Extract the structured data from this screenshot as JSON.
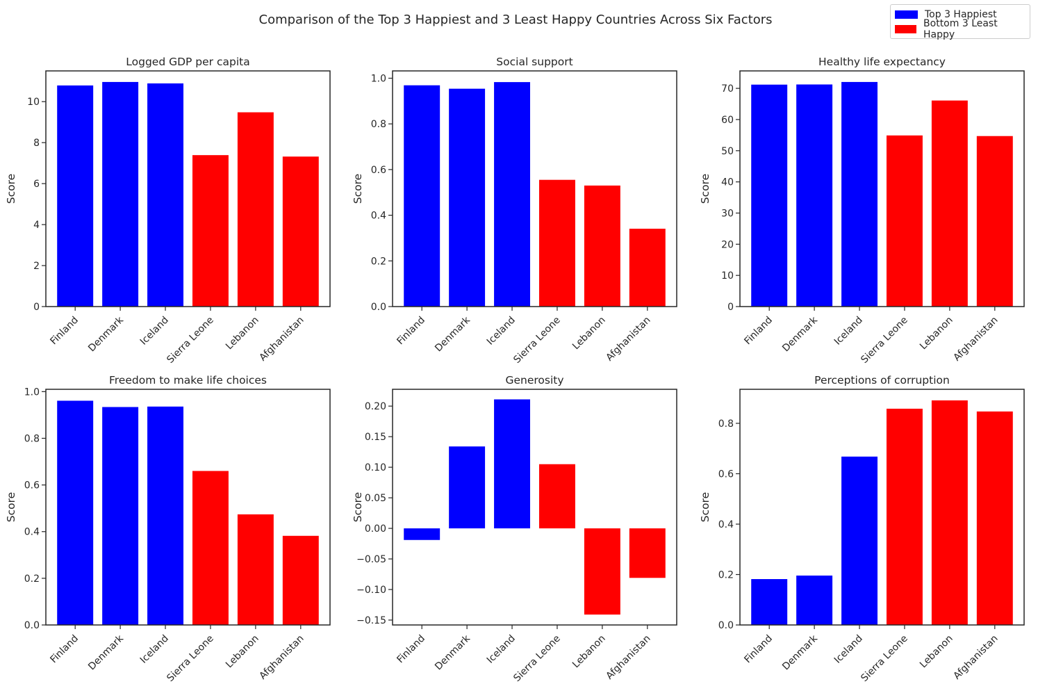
{
  "figure": {
    "suptitle": "Comparison of the Top 3 Happiest and 3 Least Happy Countries Across Six Factors"
  },
  "legend": [
    {
      "label": "Top 3 Happiest",
      "color": "#0000ff"
    },
    {
      "label": "Bottom 3 Least Happy",
      "color": "#ff0000"
    }
  ],
  "chart_data": [
    {
      "type": "bar",
      "title": "Logged GDP per capita",
      "xlabel": "",
      "ylabel": "Score",
      "categories": [
        "Finland",
        "Denmark",
        "Iceland",
        "Sierra Leone",
        "Lebanon",
        "Afghanistan"
      ],
      "values": [
        10.79,
        10.96,
        10.89,
        7.39,
        9.48,
        7.32
      ],
      "colors": [
        "#0000ff",
        "#0000ff",
        "#0000ff",
        "#ff0000",
        "#ff0000",
        "#ff0000"
      ],
      "ylim": [
        0,
        11.5
      ],
      "yticks": [
        0,
        2,
        4,
        6,
        8,
        10
      ],
      "ytick_labels": [
        "0",
        "2",
        "4",
        "6",
        "8",
        "10"
      ],
      "grid": false
    },
    {
      "type": "bar",
      "title": "Social support",
      "xlabel": "",
      "ylabel": "Score",
      "categories": [
        "Finland",
        "Denmark",
        "Iceland",
        "Sierra Leone",
        "Lebanon",
        "Afghanistan"
      ],
      "values": [
        0.969,
        0.954,
        0.983,
        0.555,
        0.53,
        0.341
      ],
      "colors": [
        "#0000ff",
        "#0000ff",
        "#0000ff",
        "#ff0000",
        "#ff0000",
        "#ff0000"
      ],
      "ylim": [
        0,
        1.032
      ],
      "yticks": [
        0,
        0.2,
        0.4,
        0.6,
        0.8,
        1.0
      ],
      "ytick_labels": [
        "0.0",
        "0.2",
        "0.4",
        "0.6",
        "0.8",
        "1.0"
      ],
      "grid": false
    },
    {
      "type": "bar",
      "title": "Healthy life expectancy",
      "xlabel": "",
      "ylabel": "Score",
      "categories": [
        "Finland",
        "Denmark",
        "Iceland",
        "Sierra Leone",
        "Lebanon",
        "Afghanistan"
      ],
      "values": [
        71.2,
        71.25,
        72.05,
        54.9,
        66.1,
        54.7
      ],
      "colors": [
        "#0000ff",
        "#0000ff",
        "#0000ff",
        "#ff0000",
        "#ff0000",
        "#ff0000"
      ],
      "ylim": [
        0,
        75.6
      ],
      "yticks": [
        0,
        10,
        20,
        30,
        40,
        50,
        60,
        70
      ],
      "ytick_labels": [
        "0",
        "10",
        "20",
        "30",
        "40",
        "50",
        "60",
        "70"
      ],
      "grid": false
    },
    {
      "type": "bar",
      "title": "Freedom to make life choices",
      "xlabel": "",
      "ylabel": "Score",
      "categories": [
        "Finland",
        "Denmark",
        "Iceland",
        "Sierra Leone",
        "Lebanon",
        "Afghanistan"
      ],
      "values": [
        0.961,
        0.934,
        0.936,
        0.66,
        0.474,
        0.382
      ],
      "colors": [
        "#0000ff",
        "#0000ff",
        "#0000ff",
        "#ff0000",
        "#ff0000",
        "#ff0000"
      ],
      "ylim": [
        0,
        1.01
      ],
      "yticks": [
        0,
        0.2,
        0.4,
        0.6,
        0.8,
        1.0
      ],
      "ytick_labels": [
        "0.0",
        "0.2",
        "0.4",
        "0.6",
        "0.8",
        "1.0"
      ],
      "grid": false
    },
    {
      "type": "bar",
      "title": "Generosity",
      "xlabel": "",
      "ylabel": "Score",
      "categories": [
        "Finland",
        "Denmark",
        "Iceland",
        "Sierra Leone",
        "Lebanon",
        "Afghanistan"
      ],
      "values": [
        -0.019,
        0.134,
        0.211,
        0.105,
        -0.141,
        -0.081
      ],
      "colors": [
        "#0000ff",
        "#0000ff",
        "#0000ff",
        "#ff0000",
        "#ff0000",
        "#ff0000"
      ],
      "ylim": [
        -0.158,
        0.2275
      ],
      "yticks": [
        -0.15,
        -0.1,
        -0.05,
        0,
        0.05,
        0.1,
        0.15,
        0.2
      ],
      "ytick_labels": [
        "−0.15",
        "−0.10",
        "−0.05",
        "0.00",
        "0.05",
        "0.10",
        "0.15",
        "0.20"
      ],
      "grid": false
    },
    {
      "type": "bar",
      "title": "Perceptions of corruption",
      "xlabel": "",
      "ylabel": "Score",
      "categories": [
        "Finland",
        "Denmark",
        "Iceland",
        "Sierra Leone",
        "Lebanon",
        "Afghanistan"
      ],
      "values": [
        0.182,
        0.196,
        0.668,
        0.858,
        0.891,
        0.847
      ],
      "colors": [
        "#0000ff",
        "#0000ff",
        "#0000ff",
        "#ff0000",
        "#ff0000",
        "#ff0000"
      ],
      "ylim": [
        0,
        0.935
      ],
      "yticks": [
        0,
        0.2,
        0.4,
        0.6,
        0.8
      ],
      "ytick_labels": [
        "0.0",
        "0.2",
        "0.4",
        "0.6",
        "0.8"
      ],
      "grid": false
    }
  ]
}
